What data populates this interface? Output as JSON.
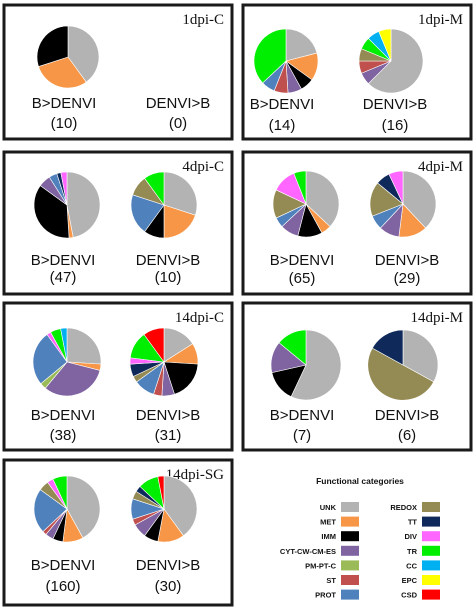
{
  "categories": [
    {
      "code": "UNK",
      "color": "#b3b3b3"
    },
    {
      "code": "MET",
      "color": "#f79646"
    },
    {
      "code": "IMM",
      "color": "#000000"
    },
    {
      "code": "CYT-CW-CM-ES",
      "color": "#8064a2"
    },
    {
      "code": "PM-PT-C",
      "color": "#9bbb59"
    },
    {
      "code": "ST",
      "color": "#c0504d"
    },
    {
      "code": "PROT",
      "color": "#4f81bd"
    },
    {
      "code": "REDOX",
      "color": "#948a54"
    },
    {
      "code": "TT",
      "color": "#0f2a5a"
    },
    {
      "code": "DIV",
      "color": "#ff66ff"
    },
    {
      "code": "TR",
      "color": "#00ee00"
    },
    {
      "code": "CC",
      "color": "#00b0f0"
    },
    {
      "code": "EPC",
      "color": "#ffff00"
    },
    {
      "code": "CSD",
      "color": "#ff0000"
    }
  ],
  "legend": {
    "title": "Functional categories"
  },
  "chart_data": [
    {
      "type": "pie",
      "title": "1dpi-C",
      "pies": [
        {
          "label": "B>DENVI",
          "count": "(10)",
          "values": {
            "UNK": 40,
            "MET": 30,
            "IMM": 30
          }
        },
        {
          "label": "DENVI>B",
          "count": "(0)",
          "values": {}
        }
      ]
    },
    {
      "type": "pie",
      "title": "1dpi-M",
      "pies": [
        {
          "label": "B>DENVI",
          "count": "(14)",
          "values": {
            "UNK": 21,
            "MET": 14,
            "IMM": 7,
            "CYT-CW-CM-ES": 7,
            "ST": 7,
            "PROT": 7,
            "TR": 37
          }
        },
        {
          "label": "DENVI>B",
          "count": "(16)",
          "values": {
            "UNK": 62.5,
            "CYT-CW-CM-ES": 6.25,
            "ST": 6.25,
            "REDOX": 6.25,
            "TR": 6.25,
            "CC": 6.25,
            "EPC": 6.25
          }
        }
      ]
    },
    {
      "type": "pie",
      "title": "4dpi-C",
      "pies": [
        {
          "label": "B>DENVI",
          "count": "(47)",
          "values": {
            "UNK": 47,
            "MET": 2,
            "IMM": 36,
            "CYT-CW-CM-ES": 6,
            "PROT": 4,
            "TT": 2,
            "DIV": 3
          }
        },
        {
          "label": "DENVI>B",
          "count": "(10)",
          "values": {
            "UNK": 30,
            "MET": 20,
            "IMM": 10,
            "PROT": 20,
            "REDOX": 10,
            "TR": 10
          }
        }
      ]
    },
    {
      "type": "pie",
      "title": "4dpi-M",
      "pies": [
        {
          "label": "B>DENVI",
          "count": "(65)",
          "values": {
            "UNK": 37,
            "MET": 5,
            "IMM": 12,
            "CYT-CW-CM-ES": 9,
            "PROT": 5,
            "REDOX": 14,
            "TR": 6,
            "DIV": 12
          }
        },
        {
          "label": "DENVI>B",
          "count": "(29)",
          "values": {
            "UNK": 38,
            "MET": 14,
            "CYT-CW-CM-ES": 10,
            "PROT": 7,
            "REDOX": 17,
            "TT": 7,
            "DIV": 7
          }
        }
      ]
    },
    {
      "type": "pie",
      "title": "14dpi-C",
      "pies": [
        {
          "label": "B>DENVI",
          "count": "(38)",
          "values": {
            "UNK": 26,
            "MET": 3,
            "CYT-CW-CM-ES": 32,
            "PM-PT-C": 3,
            "PROT": 26,
            "TR": 5,
            "CC": 3,
            "DIV": 2
          }
        },
        {
          "label": "DENVI>B",
          "count": "(31)",
          "values": {
            "UNK": 16,
            "MET": 10,
            "IMM": 19,
            "CYT-CW-CM-ES": 6,
            "PROT": 10,
            "TT": 6,
            "REDOX": 3,
            "TR": 13,
            "DIV": 3,
            "CSD": 10,
            "ST": 4
          }
        }
      ]
    },
    {
      "type": "pie",
      "title": "14dpi-M",
      "pies": [
        {
          "label": "B>DENVI",
          "count": "(7)",
          "values": {
            "UNK": 57,
            "IMM": 14.5,
            "CYT-CW-CM-ES": 14.5,
            "TR": 14
          }
        },
        {
          "label": "DENVI>B",
          "count": "(6)",
          "values": {
            "UNK": 33,
            "REDOX": 50,
            "TT": 17
          }
        }
      ]
    },
    {
      "type": "pie",
      "title": "14dpi-SG",
      "pies": [
        {
          "label": "B>DENVI",
          "count": "(160)",
          "values": {
            "UNK": 42,
            "MET": 10,
            "IMM": 5,
            "CYT-CW-CM-ES": 4,
            "PROT": 22,
            "REDOX": 5,
            "TR": 7,
            "DIV": 3,
            "ST": 2
          }
        },
        {
          "label": "DENVI>B",
          "count": "(30)",
          "values": {
            "UNK": 40,
            "MET": 13,
            "IMM": 7,
            "CYT-CW-CM-ES": 7,
            "ST": 3,
            "PROT": 10,
            "TT": 3,
            "TR": 10,
            "CSD": 3,
            "REDOX": 4
          }
        }
      ]
    }
  ]
}
